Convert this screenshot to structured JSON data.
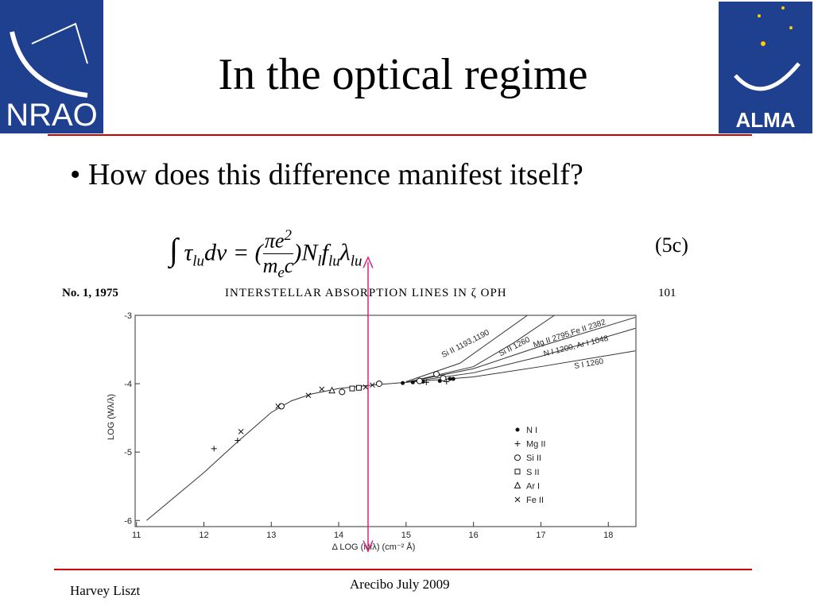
{
  "logos": {
    "left": "NRAO",
    "right": "ALMA"
  },
  "title": "In the optical regime",
  "bullet": "How does this difference manifest itself?",
  "equation": {
    "parts": [
      "∫",
      "τ",
      "lu",
      "dv = (",
      "πe",
      "2",
      "m",
      "e",
      "c",
      ")N",
      "l",
      "f",
      "lu",
      "λ",
      "lu"
    ],
    "number": "(5c)"
  },
  "figure_header": {
    "left": "No. 1, 1975",
    "center": "INTERSTELLAR ABSORPTION LINES IN ζ OPH",
    "right": "101"
  },
  "chart_data": {
    "type": "scatter",
    "x_label": "Δ LOG (Nfλ)   (cm⁻² Å)",
    "y_label": "LOG (Wλ/λ)",
    "xlim": [
      10.98,
      18.41
    ],
    "ylim": [
      -6.09,
      -3
    ],
    "xticks": [
      11,
      12,
      13,
      14,
      15,
      16,
      17,
      18
    ],
    "yticks": [
      -3,
      -4,
      -5,
      -6
    ],
    "base_curve": {
      "x": [
        11.15,
        12,
        12.5,
        13,
        13.3,
        13.6,
        14,
        14.5,
        15
      ],
      "y": [
        -6,
        -5.3,
        -4.85,
        -4.42,
        -4.25,
        -4.15,
        -4.07,
        -4.02,
        -3.98
      ]
    },
    "curves": [
      {
        "name": "Si II 1193,1190",
        "x": [
          15,
          15.8,
          16.3,
          16.8
        ],
        "y": [
          -3.97,
          -3.7,
          -3.35,
          -3.0
        ]
      },
      {
        "name": "Si II 1260",
        "x": [
          15,
          16,
          16.6,
          17.2
        ],
        "y": [
          -3.98,
          -3.75,
          -3.4,
          -3.0
        ]
      },
      {
        "name": "Mg II 2795,Fe II 2382",
        "x": [
          15,
          16,
          17,
          18.4
        ],
        "y": [
          -3.98,
          -3.78,
          -3.45,
          -3.03
        ]
      },
      {
        "name": "N I 1200, Ar I 1048",
        "x": [
          15,
          16,
          17,
          18.4
        ],
        "y": [
          -3.98,
          -3.84,
          -3.6,
          -3.19
        ]
      },
      {
        "name": "S I 1260",
        "x": [
          15,
          16,
          17,
          18.4
        ],
        "y": [
          -3.98,
          -3.9,
          -3.75,
          -3.52
        ]
      }
    ],
    "series": [
      {
        "name": "N I",
        "marker": "dot",
        "x": [
          14.95,
          15.1,
          15.2,
          15.25,
          15.5,
          15.65,
          15.7
        ],
        "y": [
          -3.99,
          -3.98,
          -3.97,
          -3.97,
          -3.96,
          -3.93,
          -3.93
        ]
      },
      {
        "name": "Mg II",
        "marker": "plus",
        "x": [
          12.15,
          12.5,
          15.3,
          15.6
        ],
        "y": [
          -4.95,
          -4.83,
          -3.98,
          -3.97
        ]
      },
      {
        "name": "Si II",
        "marker": "circle",
        "x": [
          13.15,
          14.05,
          14.6,
          15.45,
          15.55,
          15.2
        ],
        "y": [
          -4.33,
          -4.12,
          -4.0,
          -3.86,
          -3.92,
          -3.96
        ]
      },
      {
        "name": "S II",
        "marker": "square",
        "x": [
          14.2,
          14.3
        ],
        "y": [
          -4.07,
          -4.06
        ]
      },
      {
        "name": "Ar I",
        "marker": "triangle",
        "x": [
          13.9
        ],
        "y": [
          -4.1
        ]
      },
      {
        "name": "Fe II",
        "marker": "cross",
        "x": [
          12.55,
          13.55,
          13.75,
          14.4,
          14.5,
          13.1
        ],
        "y": [
          -4.7,
          -4.17,
          -4.08,
          -4.05,
          -4.02,
          -4.33
        ]
      }
    ]
  },
  "footer": {
    "author": "Harvey Liszt",
    "event": "Arecibo July 2009"
  }
}
